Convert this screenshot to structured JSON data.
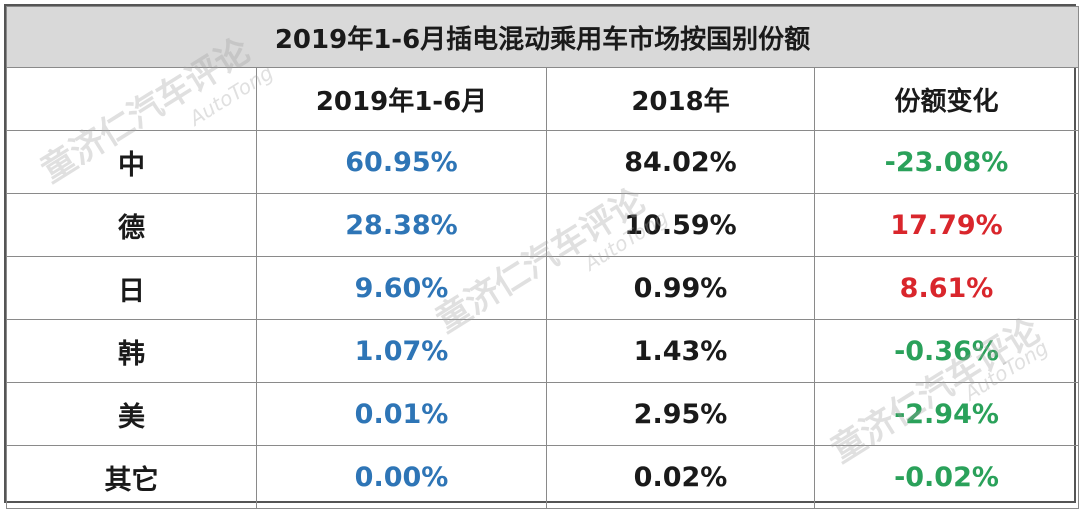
{
  "chart_data": {
    "type": "table",
    "title": "2019年1-6月插电混动乘用车市场按国别份额",
    "columns": [
      "",
      "2019年1-6月",
      "2018年",
      "份额变化"
    ],
    "rows": [
      {
        "country": "中",
        "v2019": "60.95%",
        "v2018": "84.02%",
        "change": "-23.08%",
        "change_sign": "neg"
      },
      {
        "country": "德",
        "v2019": "28.38%",
        "v2018": "10.59%",
        "change": "17.79%",
        "change_sign": "pos"
      },
      {
        "country": "日",
        "v2019": "9.60%",
        "v2018": "0.99%",
        "change": "8.61%",
        "change_sign": "pos"
      },
      {
        "country": "韩",
        "v2019": "1.07%",
        "v2018": "1.43%",
        "change": "-0.36%",
        "change_sign": "neg"
      },
      {
        "country": "美",
        "v2019": "0.01%",
        "v2018": "2.95%",
        "change": "-2.94%",
        "change_sign": "neg"
      },
      {
        "country": "其它",
        "v2019": "0.00%",
        "v2018": "0.02%",
        "change": "-0.02%",
        "change_sign": "neg"
      }
    ]
  },
  "colors": {
    "title_bg": "#d9d9d9",
    "v2019": "#2e75b6",
    "increase": "#d9262c",
    "decrease": "#2aa15a",
    "text": "#1a1a1a"
  },
  "watermark": {
    "cn": "童济仁汽车评论",
    "en": "AutoTong"
  }
}
